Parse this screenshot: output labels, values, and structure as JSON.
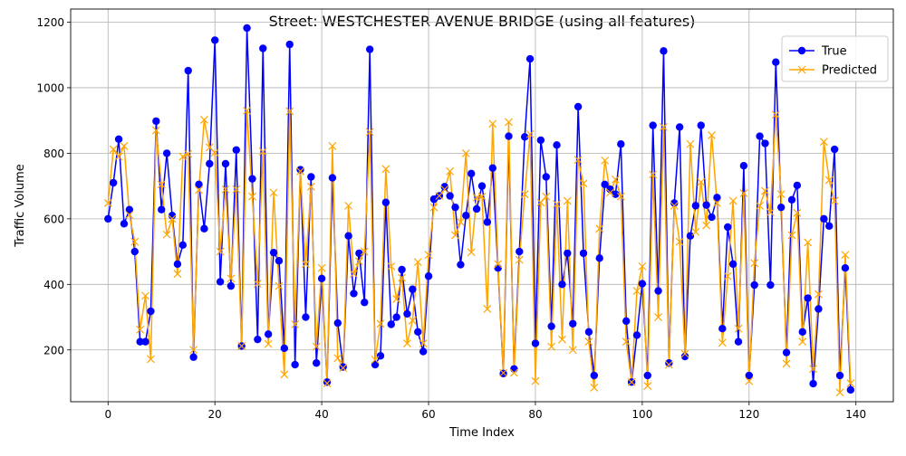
{
  "chart_data": {
    "type": "line",
    "title": "Street: WESTCHESTER AVENUE BRIDGE (using all features)",
    "xlabel": "Time Index",
    "ylabel": "Traffic Volume",
    "xlim": [
      -7,
      147
    ],
    "ylim": [
      42,
      1240
    ],
    "xticks": [
      0,
      20,
      40,
      60,
      80,
      100,
      120,
      140
    ],
    "yticks": [
      200,
      400,
      600,
      800,
      1000,
      1200
    ],
    "grid": true,
    "legend_position": "top-right",
    "x_start": 0,
    "series": [
      {
        "name": "True",
        "color": "#0000ff",
        "marker": "circle",
        "values": [
          600,
          710,
          843,
          585,
          628,
          500,
          225,
          225,
          318,
          898,
          628,
          800,
          610,
          462,
          520,
          1052,
          178,
          705,
          570,
          768,
          1145,
          408,
          768,
          395,
          810,
          212,
          1182,
          722,
          232,
          1120,
          248,
          497,
          472,
          205,
          1132,
          155,
          750,
          300,
          728,
          160,
          418,
          102,
          725,
          282,
          148,
          548,
          372,
          495,
          345,
          1117,
          155,
          182,
          650,
          278,
          300,
          445,
          310,
          385,
          255,
          195,
          425,
          660,
          670,
          698,
          670,
          635,
          460,
          610,
          738,
          630,
          700,
          590,
          755,
          450,
          128,
          852,
          142,
          500,
          850,
          1088,
          220,
          840,
          728,
          272,
          825,
          400,
          495,
          280,
          942,
          495,
          255,
          122,
          480,
          705,
          690,
          675,
          828,
          288,
          102,
          245,
          402,
          122,
          885,
          380,
          1112,
          160,
          648,
          880,
          180,
          548,
          640,
          885,
          642,
          605,
          665,
          265,
          575,
          462,
          225,
          762,
          122,
          398,
          852,
          830,
          398,
          1078,
          635,
          192,
          658,
          702,
          255,
          358,
          97,
          325,
          600,
          578,
          812,
          122,
          450,
          78
        ]
      },
      {
        "name": "Predicted",
        "color": "#ffa500",
        "marker": "x",
        "values": [
          648,
          812,
          790,
          822,
          612,
          530,
          262,
          365,
          172,
          870,
          705,
          552,
          600,
          432,
          790,
          798,
          200,
          688,
          902,
          818,
          802,
          500,
          690,
          418,
          690,
          212,
          930,
          668,
          402,
          805,
          218,
          680,
          395,
          125,
          928,
          278,
          745,
          462,
          698,
          210,
          450,
          98,
          822,
          175,
          145,
          640,
          432,
          470,
          500,
          865,
          170,
          280,
          752,
          455,
          355,
          420,
          220,
          290,
          468,
          220,
          490,
          635,
          670,
          690,
          745,
          550,
          590,
          800,
          498,
          665,
          668,
          325,
          890,
          462,
          130,
          895,
          130,
          475,
          675,
          858,
          105,
          650,
          668,
          210,
          645,
          232,
          655,
          200,
          780,
          708,
          225,
          85,
          570,
          778,
          680,
          720,
          668,
          225,
          102,
          380,
          455,
          90,
          735,
          300,
          880,
          155,
          640,
          530,
          188,
          828,
          560,
          712,
          580,
          855,
          648,
          222,
          425,
          655,
          265,
          678,
          105,
          465,
          640,
          685,
          620,
          918,
          675,
          158,
          550,
          618,
          225,
          528,
          142,
          370,
          835,
          718,
          655,
          70,
          490,
          98
        ]
      }
    ]
  }
}
